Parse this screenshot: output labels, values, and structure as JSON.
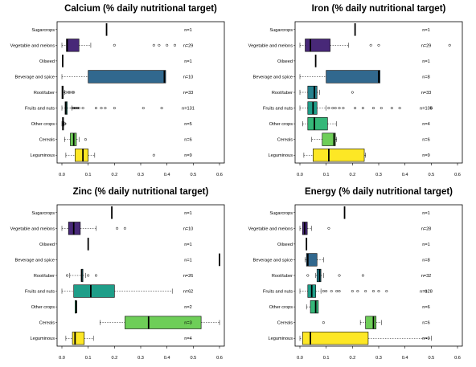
{
  "chart_data": [
    {
      "type": "boxplot",
      "title": "Calcium (% daily nutritional target)",
      "categories": [
        "Sugarcrops",
        "Vegetable and melons",
        "Oilseed",
        "Beverage and spice",
        "Root/tuber",
        "Fruits and nuts",
        "Other crops",
        "Cereals",
        "Leguminous"
      ],
      "n_labels": [
        "n=1",
        "n=29",
        "n=1",
        "n=10",
        "n=33",
        "n=131",
        "n=5",
        "n=6",
        "n=9"
      ],
      "colors": [
        "#440154",
        "#482878",
        "#3e4a89",
        "#31688e",
        "#26828e",
        "#1f9e89",
        "#35b779",
        "#6ece58",
        "#fde725"
      ],
      "xlim": [
        0,
        0.6
      ],
      "xticks": [
        "0.0",
        "0.1",
        "0.2",
        "0.3",
        "0.4",
        "0.5",
        "0.6"
      ],
      "boxes": [
        {
          "wmin": 0.17,
          "q1": 0.17,
          "med": 0.17,
          "q3": 0.17,
          "wmax": 0.17,
          "out": []
        },
        {
          "wmin": 0.0,
          "q1": 0.017,
          "med": 0.02,
          "q3": 0.065,
          "wmax": 0.11,
          "out": [
            0.2,
            0.35,
            0.37,
            0.4,
            0.43
          ]
        },
        {
          "wmin": 0.003,
          "q1": 0.003,
          "med": 0.003,
          "q3": 0.003,
          "wmax": 0.003,
          "out": []
        },
        {
          "wmin": 0.0,
          "q1": 0.1,
          "med": 0.39,
          "q3": 0.395,
          "wmax": 0.395,
          "out": []
        },
        {
          "wmin": 0.0,
          "q1": 0.0,
          "med": 0.003,
          "q3": 0.005,
          "wmax": 0.01,
          "out": [
            0.015,
            0.025,
            0.03,
            0.04,
            0.045
          ]
        },
        {
          "wmin": 0.0,
          "q1": 0.012,
          "med": 0.015,
          "q3": 0.02,
          "wmax": 0.038,
          "out": [
            0.04,
            0.045,
            0.05,
            0.055,
            0.06,
            0.065,
            0.08,
            0.13,
            0.15,
            0.165,
            0.2,
            0.31,
            0.38
          ]
        },
        {
          "wmin": 0.0,
          "q1": 0.002,
          "med": 0.004,
          "q3": 0.006,
          "wmax": 0.008,
          "out": [
            0.01,
            0.012
          ]
        },
        {
          "wmin": 0.01,
          "q1": 0.032,
          "med": 0.045,
          "q3": 0.055,
          "wmax": 0.065,
          "out": [
            0.09
          ]
        },
        {
          "wmin": 0.015,
          "q1": 0.05,
          "med": 0.08,
          "q3": 0.1,
          "wmax": 0.125,
          "out": [
            0.35
          ]
        }
      ]
    },
    {
      "type": "boxplot",
      "title": "Iron (% daily nutritional target)",
      "categories": [
        "Sugarcrops",
        "Vegetable and melons",
        "Oilseed",
        "Beverage and spice",
        "Root/tuber",
        "Fruits and nuts",
        "Other crops",
        "Cereals",
        "Leguminous"
      ],
      "n_labels": [
        "n=1",
        "n=29",
        "n=1",
        "n=8",
        "n=33",
        "n=105",
        "n=4",
        "n=6",
        "n=9"
      ],
      "colors": [
        "#440154",
        "#482878",
        "#3e4a89",
        "#31688e",
        "#26828e",
        "#1f9e89",
        "#35b779",
        "#6ece58",
        "#fde725"
      ],
      "xlim": [
        0,
        0.6
      ],
      "xticks": [
        "0.0",
        "0.1",
        "0.2",
        "0.3",
        "0.4",
        "0.5",
        "0.6"
      ],
      "boxes": [
        {
          "wmin": 0.21,
          "q1": 0.21,
          "med": 0.21,
          "q3": 0.21,
          "wmax": 0.21,
          "out": []
        },
        {
          "wmin": 0.0,
          "q1": 0.02,
          "med": 0.04,
          "q3": 0.115,
          "wmax": 0.185,
          "out": [
            0.27,
            0.3,
            0.57
          ]
        },
        {
          "wmin": 0.06,
          "q1": 0.06,
          "med": 0.06,
          "q3": 0.06,
          "wmax": 0.06,
          "out": []
        },
        {
          "wmin": 0.0,
          "q1": 0.1,
          "med": 0.3,
          "q3": 0.305,
          "wmax": 0.305,
          "out": []
        },
        {
          "wmin": 0.0,
          "q1": 0.03,
          "med": 0.055,
          "q3": 0.065,
          "wmax": 0.075,
          "out": [
            0.2
          ]
        },
        {
          "wmin": 0.0,
          "q1": 0.03,
          "med": 0.05,
          "q3": 0.065,
          "wmax": 0.1,
          "out": [
            0.11,
            0.125,
            0.135,
            0.15,
            0.165,
            0.21,
            0.24,
            0.28,
            0.31,
            0.35,
            0.38,
            0.5
          ]
        },
        {
          "wmin": 0.01,
          "q1": 0.03,
          "med": 0.055,
          "q3": 0.105,
          "wmax": 0.14,
          "out": []
        },
        {
          "wmin": 0.045,
          "q1": 0.085,
          "med": 0.13,
          "q3": 0.135,
          "wmax": 0.14,
          "out": []
        },
        {
          "wmin": 0.015,
          "q1": 0.05,
          "med": 0.11,
          "q3": 0.245,
          "wmax": 0.25,
          "out": []
        }
      ]
    },
    {
      "type": "boxplot",
      "title": "Zinc (% daily nutritional target)",
      "categories": [
        "Sugarcrops",
        "Vegetable and melons",
        "Oilseed",
        "Beverage and spice",
        "Root/tuber",
        "Fruits and nuts",
        "Other crops",
        "Cereals",
        "Leguminous"
      ],
      "n_labels": [
        "n=1",
        "n=10",
        "n=1",
        "n=1",
        "n=26",
        "n=62",
        "n=2",
        "n=3",
        "n=4"
      ],
      "colors": [
        "#440154",
        "#482878",
        "#3e4a89",
        "#31688e",
        "#26828e",
        "#1f9e89",
        "#35b779",
        "#6ece58",
        "#fde725"
      ],
      "xlim": [
        0,
        0.6
      ],
      "xticks": [
        "0.0",
        "0.1",
        "0.2",
        "0.3",
        "0.4",
        "0.5",
        "0.6"
      ],
      "boxes": [
        {
          "wmin": 0.19,
          "q1": 0.19,
          "med": 0.19,
          "q3": 0.19,
          "wmax": 0.19,
          "out": []
        },
        {
          "wmin": 0.0,
          "q1": 0.025,
          "med": 0.045,
          "q3": 0.07,
          "wmax": 0.13,
          "out": [
            0.21,
            0.24
          ]
        },
        {
          "wmin": 0.1,
          "q1": 0.1,
          "med": 0.1,
          "q3": 0.1,
          "wmax": 0.1,
          "out": []
        },
        {
          "wmin": 0.6,
          "q1": 0.6,
          "med": 0.6,
          "q3": 0.6,
          "wmax": 0.6,
          "out": []
        },
        {
          "wmin": 0.03,
          "q1": 0.075,
          "med": 0.075,
          "q3": 0.08,
          "wmax": 0.09,
          "out": [
            0.02,
            0.1,
            0.13
          ]
        },
        {
          "wmin": 0.0,
          "q1": 0.045,
          "med": 0.11,
          "q3": 0.2,
          "wmax": 0.42,
          "out": []
        },
        {
          "wmin": 0.05,
          "q1": 0.05,
          "med": 0.055,
          "q3": 0.055,
          "wmax": 0.055,
          "out": []
        },
        {
          "wmin": 0.145,
          "q1": 0.24,
          "med": 0.33,
          "q3": 0.53,
          "wmax": 0.6,
          "out": []
        },
        {
          "wmin": 0.015,
          "q1": 0.04,
          "med": 0.05,
          "q3": 0.085,
          "wmax": 0.12,
          "out": []
        }
      ]
    },
    {
      "type": "boxplot",
      "title": "Energy (% daily nutritional target)",
      "categories": [
        "Sugarcrops",
        "Vegetable and melons",
        "Oilseed",
        "Beverage and spice",
        "Root/tuber",
        "Fruits and nuts",
        "Other crops",
        "Cereals",
        "Leguminous"
      ],
      "n_labels": [
        "n=1",
        "n=28",
        "n=1",
        "n=8",
        "n=32",
        "n=128",
        "n=6",
        "n=6",
        "n=9"
      ],
      "colors": [
        "#440154",
        "#482878",
        "#3e4a89",
        "#31688e",
        "#26828e",
        "#1f9e89",
        "#35b779",
        "#6ece58",
        "#fde725"
      ],
      "xlim": [
        0,
        0.6
      ],
      "xticks": [
        "0.0",
        "0.1",
        "0.2",
        "0.3",
        "0.4",
        "0.5",
        "0.6"
      ],
      "boxes": [
        {
          "wmin": 0.17,
          "q1": 0.17,
          "med": 0.17,
          "q3": 0.17,
          "wmax": 0.17,
          "out": []
        },
        {
          "wmin": 0.0,
          "q1": 0.01,
          "med": 0.018,
          "q3": 0.028,
          "wmax": 0.045,
          "out": [
            0.11
          ]
        },
        {
          "wmin": 0.025,
          "q1": 0.025,
          "med": 0.025,
          "q3": 0.025,
          "wmax": 0.025,
          "out": []
        },
        {
          "wmin": 0.02,
          "q1": 0.025,
          "med": 0.03,
          "q3": 0.065,
          "wmax": 0.09,
          "out": []
        },
        {
          "wmin": 0.06,
          "q1": 0.065,
          "med": 0.075,
          "q3": 0.08,
          "wmax": 0.09,
          "out": [
            0.03,
            0.15,
            0.24
          ]
        },
        {
          "wmin": 0.0,
          "q1": 0.03,
          "med": 0.045,
          "q3": 0.06,
          "wmax": 0.08,
          "out": [
            0.09,
            0.1,
            0.12,
            0.14,
            0.15,
            0.2,
            0.22,
            0.25,
            0.28,
            0.3,
            0.33,
            0.48
          ]
        },
        {
          "wmin": 0.025,
          "q1": 0.04,
          "med": 0.06,
          "q3": 0.07,
          "wmax": 0.07,
          "out": []
        },
        {
          "wmin": 0.23,
          "q1": 0.25,
          "med": 0.28,
          "q3": 0.29,
          "wmax": 0.31,
          "out": [
            0.09
          ]
        },
        {
          "wmin": 0.0,
          "q1": 0.01,
          "med": 0.04,
          "q3": 0.26,
          "wmax": 0.5,
          "out": []
        }
      ]
    }
  ]
}
